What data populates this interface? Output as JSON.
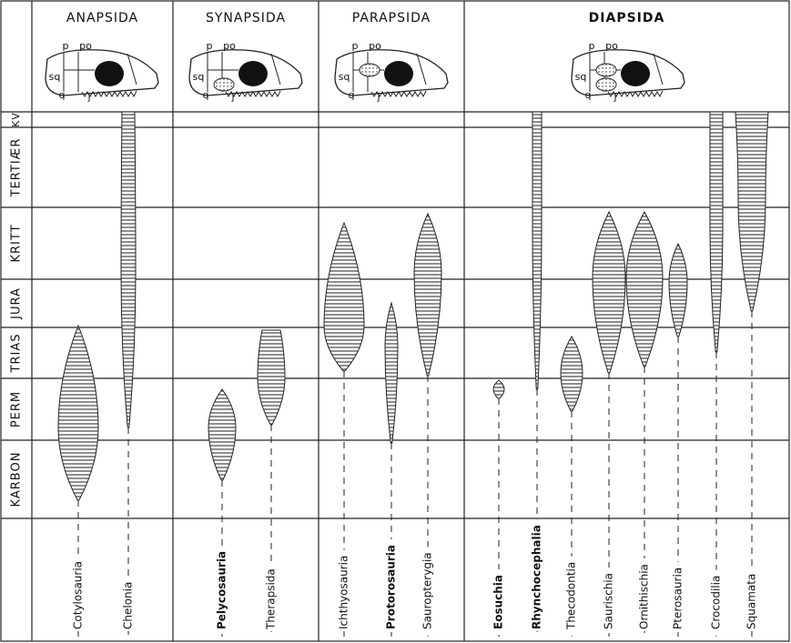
{
  "periods": [
    "KV",
    "TERTIÆR",
    "KRITT",
    "JURA",
    "TRIAS",
    "PERM",
    "KARBON"
  ],
  "groups": [
    {
      "title": "ANAPSIDA",
      "skull_labels": [
        "p",
        "po",
        "sq",
        "q",
        "j"
      ],
      "taxa": [
        "Cotylosauria",
        "Chelonia"
      ]
    },
    {
      "title": "SYNAPSIDA",
      "skull_labels": [
        "p",
        "po",
        "sq",
        "q",
        "j"
      ],
      "taxa": [
        "Pelycosauria",
        "Therapsida"
      ]
    },
    {
      "title": "PARAPSIDA",
      "skull_labels": [
        "p",
        "po",
        "sq",
        "q",
        "j"
      ],
      "taxa": [
        "Ichthyosauria",
        "Protorosauria",
        "Sauropterygia"
      ]
    },
    {
      "title": "DIAPSIDA",
      "skull_labels": [
        "p",
        "po",
        "sq",
        "q",
        "j"
      ],
      "taxa": [
        "Eosuchia",
        "Rhynchocephalia",
        "Thecodontia",
        "Saurischia",
        "Ornithischia",
        "Pterosauria",
        "Crocodilia",
        "Squamata"
      ]
    }
  ]
}
